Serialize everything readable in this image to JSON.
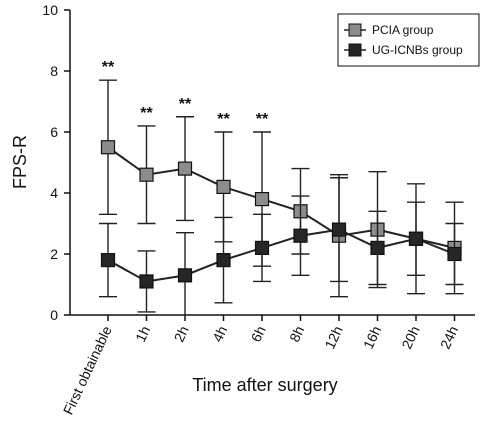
{
  "chart_data": {
    "type": "line",
    "xlabel": "Time after surgery",
    "ylabel": "FPS-R",
    "ylim": [
      0,
      10
    ],
    "yticks": [
      "0",
      "2",
      "4",
      "6",
      "8",
      "10"
    ],
    "categories": [
      "First obtainable",
      "1h",
      "2h",
      "4h",
      "6h",
      "8h",
      "12h",
      "16h",
      "20h",
      "24h"
    ],
    "significance_marker": "**",
    "significance_at": [
      "First obtainable",
      "1h",
      "2h",
      "4h",
      "6h"
    ],
    "legend_position": "top-right",
    "grid": false,
    "series": [
      {
        "name": "PCIA group",
        "color": "#8c8c8c",
        "marker": "square",
        "values": [
          5.5,
          4.6,
          4.8,
          4.2,
          3.8,
          3.4,
          2.6,
          2.8,
          2.5,
          2.2
        ],
        "error": [
          2.2,
          1.6,
          1.7,
          1.8,
          2.2,
          1.4,
          2.0,
          1.9,
          1.8,
          1.5
        ]
      },
      {
        "name": "UG-ICNBs group",
        "color": "#262626",
        "marker": "square",
        "values": [
          1.8,
          1.1,
          1.3,
          1.8,
          2.2,
          2.6,
          2.8,
          2.2,
          2.5,
          2.0
        ],
        "error": [
          1.2,
          1.0,
          1.4,
          1.4,
          1.1,
          1.3,
          1.7,
          1.2,
          1.2,
          1.0
        ]
      }
    ]
  }
}
